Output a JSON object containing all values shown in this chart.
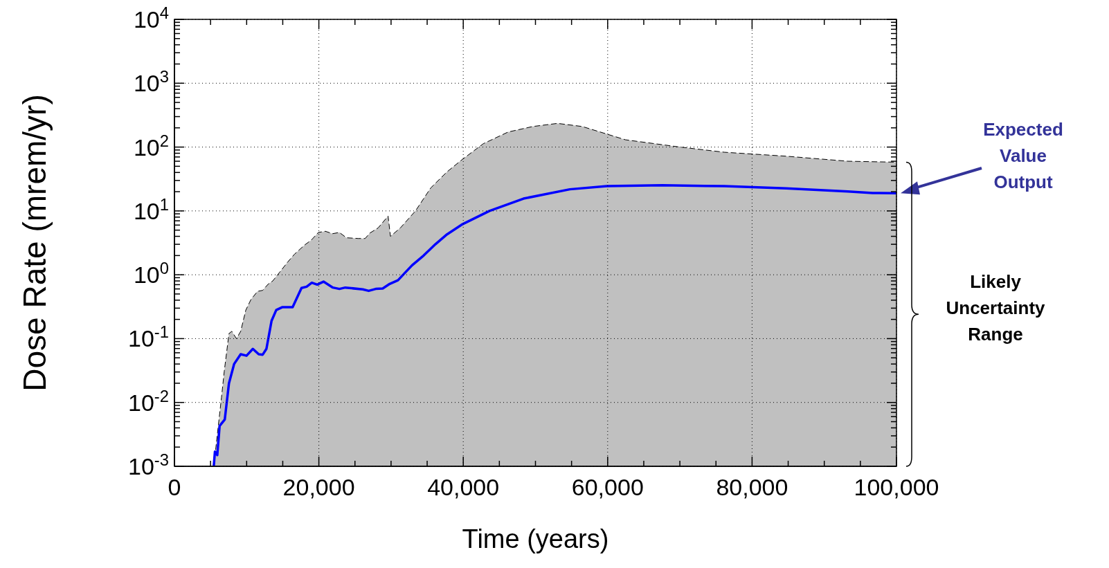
{
  "chart_data": {
    "type": "line",
    "xlabel": "Time (years)",
    "ylabel": "Dose Rate (mrem/yr)",
    "log": "y",
    "grid": true,
    "legend": false,
    "marker": "none",
    "xlim": [
      0,
      100000
    ],
    "xticks": [
      0,
      {
        "value": 5000,
        "label": null
      },
      {
        "value": 10000,
        "label": null
      },
      {
        "value": 15000,
        "label": null
      },
      {
        "value": 20000,
        "label": "20,000"
      },
      {
        "value": 25000,
        "label": null
      },
      {
        "value": 30000,
        "label": null
      },
      {
        "value": 35000,
        "label": null
      },
      {
        "value": 40000,
        "label": "40,000"
      },
      {
        "value": 45000,
        "label": null
      },
      {
        "value": 50000,
        "label": null
      },
      {
        "value": 55000,
        "label": null
      },
      {
        "value": 60000,
        "label": "60,000"
      },
      {
        "value": 65000,
        "label": null
      },
      {
        "value": 70000,
        "label": null
      },
      {
        "value": 75000,
        "label": null
      },
      {
        "value": 80000,
        "label": "80,000"
      },
      {
        "value": 85000,
        "label": null
      },
      {
        "value": 90000,
        "label": null
      },
      {
        "value": 95000,
        "label": null
      },
      {
        "value": 100000,
        "label": "100,000"
      }
    ],
    "ylim": [
      0.001,
      10000
    ],
    "yticks": [
      {
        "value": 0.001,
        "label": "10$^{-3}$"
      },
      {
        "value": 0.002,
        "label": null
      },
      {
        "value": 0.003,
        "label": null
      },
      {
        "value": 0.004,
        "label": null
      },
      {
        "value": 0.005,
        "label": null
      },
      {
        "value": 0.006,
        "label": null
      },
      {
        "value": 0.007,
        "label": null
      },
      {
        "value": 0.008,
        "label": null
      },
      {
        "value": 0.009,
        "label": null
      },
      {
        "value": 0.01,
        "label": "10$^{-2}$"
      },
      {
        "value": 0.02,
        "label": null
      },
      {
        "value": 0.03,
        "label": null
      },
      {
        "value": 0.04,
        "label": null
      },
      {
        "value": 0.05,
        "label": null
      },
      {
        "value": 0.06,
        "label": null
      },
      {
        "value": 0.07,
        "label": null
      },
      {
        "value": 0.08,
        "label": null
      },
      {
        "value": 0.09,
        "label": null
      },
      {
        "value": 0.1,
        "label": "10$^{-1}$"
      },
      {
        "value": 0.2,
        "label": null
      },
      {
        "value": 0.3,
        "label": null
      },
      {
        "value": 0.4,
        "label": null
      },
      {
        "value": 0.5,
        "label": null
      },
      {
        "value": 0.6,
        "label": null
      },
      {
        "value": 0.7,
        "label": null
      },
      {
        "value": 0.8,
        "label": null
      },
      {
        "value": 0.9,
        "label": null
      },
      {
        "value": 1,
        "label": "10$^{0}$"
      },
      {
        "value": 2,
        "label": null
      },
      {
        "value": 3,
        "label": null
      },
      {
        "value": 4,
        "label": null
      },
      {
        "value": 5,
        "label": null
      },
      {
        "value": 6,
        "label": null
      },
      {
        "value": 7,
        "label": null
      },
      {
        "value": 8,
        "label": null
      },
      {
        "value": 9,
        "label": null
      },
      {
        "value": 10,
        "label": "10$^{1}$"
      },
      {
        "value": 20,
        "label": null
      },
      {
        "value": 30,
        "label": null
      },
      {
        "value": 40,
        "label": null
      },
      {
        "value": 50,
        "label": null
      },
      {
        "value": 60,
        "label": null
      },
      {
        "value": 70,
        "label": null
      },
      {
        "value": 80,
        "label": null
      },
      {
        "value": 90,
        "label": null
      },
      {
        "value": 100,
        "label": "10$^{2}$"
      },
      {
        "value": 200,
        "label": null
      },
      {
        "value": 300,
        "label": null
      },
      {
        "value": 400,
        "label": null
      },
      {
        "value": 500,
        "label": null
      },
      {
        "value": 600,
        "label": null
      },
      {
        "value": 700,
        "label": null
      },
      {
        "value": 800,
        "label": null
      },
      {
        "value": 900,
        "label": null
      },
      {
        "value": 1000,
        "label": "10$^{3}$"
      },
      {
        "value": 2000,
        "label": null
      },
      {
        "value": 3000,
        "label": null
      },
      {
        "value": 4000,
        "label": null
      },
      {
        "value": 5000,
        "label": null
      },
      {
        "value": 6000,
        "label": null
      },
      {
        "value": 7000,
        "label": null
      },
      {
        "value": 8000,
        "label": null
      },
      {
        "value": 9000,
        "label": null
      },
      {
        "value": 10000,
        "label": "10$^{4}$"
      }
    ],
    "series": [
      {
        "type": "area",
        "color": "#c0c0c0",
        "line_style": "dashed",
        "x": [
          5445,
          6514,
          6903,
          7551,
          7940,
          8589,
          9172,
          9885,
          10598,
          11506,
          12219,
          12964,
          13612,
          14585,
          15719,
          16627,
          17988,
          18960,
          19932,
          20905,
          21877,
          22849,
          23821,
          25442,
          26414,
          27062,
          28197,
          29590,
          29914,
          31276,
          33382,
          35506,
          37757,
          39790,
          42783,
          46205,
          49627,
          53059,
          56481,
          62470,
          69746,
          76150,
          84707,
          93268,
          100000
        ],
        "values": [
          0.001,
          0.012,
          0.031,
          0.12,
          0.13,
          0.1,
          0.13,
          0.28,
          0.41,
          0.55,
          0.57,
          0.71,
          0.8,
          1.1,
          1.6,
          2.1,
          2.9,
          3.5,
          4.6,
          4.8,
          4.4,
          4.6,
          3.8,
          3.7,
          3.7,
          4.5,
          5.4,
          8.3,
          4,
          5.4,
          10,
          23,
          41,
          63,
          113,
          172,
          210,
          235,
          210,
          130,
          101,
          83,
          72,
          60,
          58
        ]
      },
      {
        "type": "line",
        "color": "#0000ff",
        "line_style": "solid",
        "x": [
          5445,
          5607,
          5931,
          6255,
          6968,
          7551,
          8264,
          9172,
          9982,
          10857,
          11668,
          12219,
          12737,
          13450,
          14098,
          14908,
          16367,
          17599,
          18312,
          19025,
          19770,
          20645,
          21942,
          22849,
          23660,
          26090,
          26900,
          27873,
          28845,
          29817,
          30951,
          32896,
          34516,
          36137,
          37757,
          39790,
          43633,
          48348,
          54758,
          59894,
          67590,
          76149,
          84707,
          93268,
          96690,
          100000
        ],
        "values": [
          0.001,
          0.0017,
          0.0015,
          0.0043,
          0.0054,
          0.02,
          0.04,
          0.057,
          0.054,
          0.069,
          0.057,
          0.056,
          0.069,
          0.19,
          0.28,
          0.31,
          0.31,
          0.62,
          0.65,
          0.75,
          0.7,
          0.78,
          0.63,
          0.6,
          0.63,
          0.59,
          0.56,
          0.6,
          0.61,
          0.72,
          0.82,
          1.4,
          2,
          3,
          4.3,
          6.1,
          10,
          15.6,
          21.8,
          24.4,
          25.2,
          24.4,
          22.6,
          20.2,
          19.1,
          19
        ]
      }
    ],
    "annotations": [
      "Expected Value Output",
      "Likely Uncertainty Range"
    ]
  }
}
